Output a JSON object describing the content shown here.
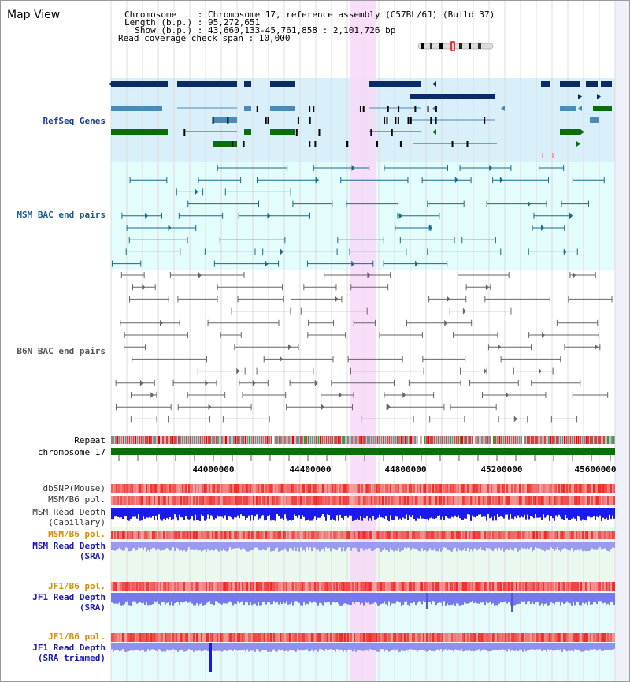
{
  "header": {
    "title": "Map View",
    "chromosome_line": "Chromosome    : Chromosome 17, reference assembly (C57BL/6J) (Build 37)",
    "length_line": "Length (b.p.) : 95,272,651",
    "show_line": "  Show (b.p.) : 43,660,133-45,761,858 : 2,101,726 bp",
    "coverage_line": "Read coverage check span : 10,000"
  },
  "tracks": {
    "refseq": "RefSeq Genes",
    "msm_bac": "MSM BAC end pairs",
    "b6n_bac": "B6N BAC end pairs",
    "repeat": "Repeat",
    "chrom": "chromosome 17",
    "dbsnp": "dbSNP(Mouse)",
    "msm_b6_pol": "MSM/B6 pol.",
    "msm_depth_cap_1": "MSM Read Depth",
    "msm_depth_cap_2": "(Capillary)",
    "msm_b6_pol2": "MSM/B6 pol.",
    "msm_depth_sra_1": "MSM Read Depth",
    "msm_depth_sra_2": "(SRA)",
    "jf1_pol": "JF1/B6 pol.",
    "jf1_depth_1": "JF1 Read Depth",
    "jf1_depth_2": "(SRA)",
    "jf1_pol2": "JF1/B6 pol.",
    "jf1_trim_1": "JF1 Read Depth",
    "jf1_trim_2": "(SRA trimmed)"
  },
  "axis": {
    "ticks": [
      "44000000",
      "44400000",
      "44800000",
      "45200000",
      "45600000"
    ]
  },
  "colors": {
    "refseq_dark": "#0b2b66",
    "refseq_mid": "#4a8ab8",
    "refseq_green": "#0a6e0a",
    "msm_bac": "#1a6a8a",
    "b6n_bac": "#666666",
    "highlight": "#f7d8f7",
    "chrom_bar": "#0a700a",
    "depth_dark": "#1a1aee",
    "depth_light": "#7777ee"
  }
}
